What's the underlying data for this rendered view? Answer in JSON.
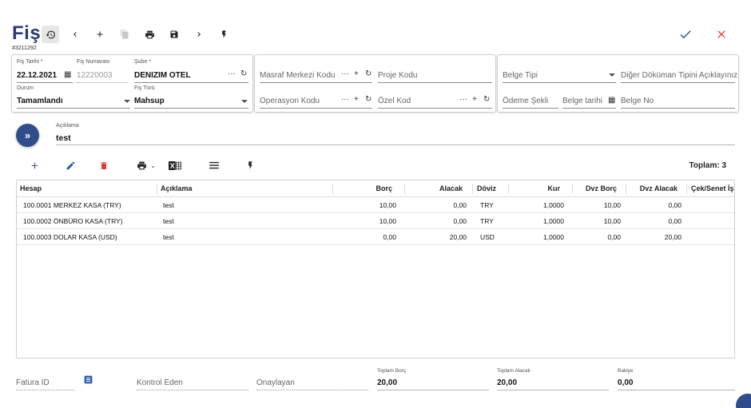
{
  "header": {
    "title": "Fiş",
    "doc_id": "#3211292"
  },
  "toolbar": {
    "icons": [
      "history-icon",
      "chevron-left-icon",
      "plus-icon",
      "copy-icon",
      "print-icon",
      "save-icon",
      "chevron-right-icon",
      "lightning-icon",
      "check-icon",
      "close-icon"
    ],
    "accent": "#2b3d6e",
    "confirm_color": "#2c5aa0",
    "cancel_color": "#e53935"
  },
  "form": {
    "fis_tarihi": {
      "label": "Fiş Tarihi *",
      "value": "22.12.2021"
    },
    "fis_numarasi": {
      "label": "Fiş Numarası",
      "value": "12220003"
    },
    "sube": {
      "label": "Şube *",
      "value": "DENIZIM OTEL"
    },
    "durum": {
      "label": "Durum",
      "value": "Tamamlandı"
    },
    "fis_turu": {
      "label": "Fiş Türü",
      "value": "Mahsup"
    },
    "masraf_merkezi": {
      "placeholder": "Masraf Merkezi Kodu"
    },
    "proje_kodu": {
      "placeholder": "Proje Kodu"
    },
    "operasyon_kodu": {
      "placeholder": "Operasyon Kodu"
    },
    "ozel_kod": {
      "placeholder": "Özel Kod"
    },
    "belge_tipi": {
      "placeholder": "Belge Tipi"
    },
    "diger_dokuman": {
      "placeholder": "Diğer Döküman Tipini Açıklayınız"
    },
    "odeme_sekli": {
      "placeholder": "Ödeme Şekli"
    },
    "belge_tarihi": {
      "placeholder": "Belge tarihi"
    },
    "belge_no": {
      "placeholder": "Belge No"
    }
  },
  "aciklama": {
    "label": "Açıklama",
    "value": "test"
  },
  "grid_toolbar": {
    "total_label": "Toplam: 3",
    "delete_color": "#e53935"
  },
  "table": {
    "columns": [
      "Hesap",
      "Açıklama",
      "Borç",
      "Alacak",
      "Döviz",
      "Kur",
      "Dvz Borç",
      "Dvz Alacak",
      "Çek/Senet İş"
    ],
    "rows": [
      [
        "100.0001 MERKEZ KASA (TRY)",
        "test",
        "10,00",
        "0,00",
        "TRY",
        "1,0000",
        "10,00",
        "0,00"
      ],
      [
        "100.0002 ÖNBÜRO KASA (TRY)",
        "test",
        "10,00",
        "0,00",
        "TRY",
        "1,0000",
        "10,00",
        "0,00"
      ],
      [
        "100.0003 DOLAR KASA (USD)",
        "test",
        "0,00",
        "20,00",
        "USD",
        "1,0000",
        "0,00",
        "20,00"
      ]
    ]
  },
  "footer": {
    "fatura_id": {
      "placeholder": "Fatura ID"
    },
    "kontrol_eden": {
      "placeholder": "Kontrol Eden"
    },
    "onaylayan": {
      "placeholder": "Onaylayan"
    },
    "toplam_borc": {
      "label": "Toplam Borç",
      "value": "20,00"
    },
    "toplam_alacak": {
      "label": "Toplam Alacak",
      "value": "20,00"
    },
    "bakiye": {
      "label": "Bakiye",
      "value": "0,00"
    }
  }
}
